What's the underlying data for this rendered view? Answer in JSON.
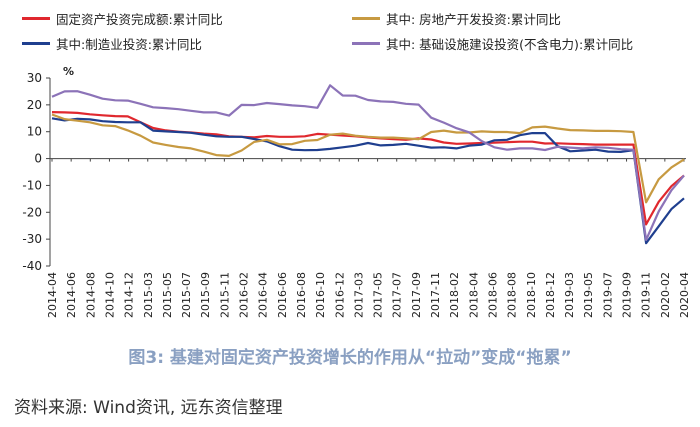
{
  "chart_data": {
    "type": "line",
    "ylabel": "%",
    "ylim": [
      -40,
      30
    ],
    "yticks": [
      30,
      20,
      10,
      0,
      -10,
      -20,
      -30,
      -40
    ],
    "grid": false,
    "legend_position": "top",
    "x_tick_labels": [
      "2014-04",
      "2014-06",
      "2014-08",
      "2014-10",
      "2014-12",
      "2015-03",
      "2015-05",
      "2015-07",
      "2015-09",
      "2015-11",
      "2016-02",
      "2016-04",
      "2016-06",
      "2016-08",
      "2016-10",
      "2016-12",
      "2017-03",
      "2017-05",
      "2017-07",
      "2017-09",
      "2017-11",
      "2018-02",
      "2018-04",
      "2018-06",
      "2018-08",
      "2018-10",
      "2018-12",
      "2019-03",
      "2019-05",
      "2019-07",
      "2019-09",
      "2019-11",
      "2020-02",
      "2020-04"
    ],
    "series": [
      {
        "name": "固定资产投资完成额:累计同比",
        "color": "#e0282e",
        "values": [
          17.3,
          17.2,
          17.0,
          16.5,
          16.1,
          15.8,
          15.7,
          13.5,
          11.4,
          10.5,
          10.0,
          9.7,
          9.3,
          9.0,
          8.3,
          8.1,
          7.9,
          8.4,
          8.1,
          8.1,
          8.3,
          9.2,
          8.9,
          8.6,
          8.3,
          7.9,
          7.5,
          7.2,
          7.0,
          7.5,
          7.1,
          6.0,
          5.5,
          5.6,
          5.8,
          5.9,
          6.1,
          6.3,
          6.3,
          5.6,
          5.7,
          5.5,
          5.4,
          5.2,
          5.2,
          5.2,
          5.2,
          -24.5,
          -16.1,
          -10.3,
          -6.3
        ]
      },
      {
        "name": "其中:制造业投资:累计同比",
        "color": "#1f3f8f",
        "values": [
          15.0,
          14.2,
          14.8,
          14.6,
          13.9,
          13.6,
          13.5,
          13.5,
          10.4,
          10.1,
          9.9,
          9.6,
          8.9,
          8.3,
          8.1,
          8.1,
          7.3,
          6.4,
          4.6,
          3.3,
          3.1,
          3.2,
          3.6,
          4.2,
          4.8,
          5.8,
          4.9,
          5.1,
          5.5,
          4.8,
          4.1,
          4.2,
          3.8,
          4.8,
          5.2,
          6.8,
          7.0,
          8.7,
          9.5,
          9.5,
          4.6,
          2.7,
          3.0,
          3.3,
          2.6,
          2.5,
          3.1,
          -31.5,
          -25.2,
          -18.8,
          -14.8
        ]
      },
      {
        "name": "其中:房地产开发投资:累计同比",
        "color": "#c79a41",
        "values": [
          16.4,
          14.7,
          14.1,
          13.5,
          12.4,
          12.1,
          10.5,
          8.5,
          6.0,
          5.1,
          4.3,
          3.8,
          2.6,
          1.3,
          1.0,
          3.0,
          6.2,
          7.0,
          5.3,
          5.4,
          6.6,
          6.9,
          8.9,
          9.3,
          8.5,
          8.1,
          7.8,
          7.8,
          7.5,
          7.2,
          9.9,
          10.4,
          9.7,
          9.7,
          10.1,
          9.9,
          9.9,
          9.5,
          11.6,
          11.9,
          11.2,
          10.6,
          10.5,
          10.3,
          10.3,
          10.2,
          9.9,
          -16.3,
          -7.7,
          -3.3,
          -0.3
        ]
      },
      {
        "name": "其中:基础设施建设投资(不含电力):累计同比",
        "color": "#8c73b8",
        "values": [
          23.0,
          25.0,
          25.1,
          23.8,
          22.3,
          21.7,
          21.6,
          20.4,
          19.1,
          18.8,
          18.4,
          17.8,
          17.2,
          17.2,
          16.0,
          20.0,
          19.9,
          20.7,
          20.3,
          19.8,
          19.5,
          18.9,
          27.3,
          23.5,
          23.4,
          21.8,
          21.3,
          21.1,
          20.4,
          20.1,
          15.2,
          13.4,
          11.3,
          9.8,
          6.5,
          4.2,
          3.3,
          3.8,
          3.8,
          3.2,
          4.4,
          4.1,
          3.8,
          4.2,
          4.0,
          3.5,
          3.3,
          -30.3,
          -19.7,
          -11.8,
          -6.3
        ]
      }
    ]
  },
  "legend": [
    {
      "label": "固定资产投资完成额:累计同比",
      "color": "#e0282e"
    },
    {
      "label": "其中: 房地产开发投资:累计同比",
      "color": "#c79a41"
    },
    {
      "label": "其中:制造业投资:累计同比",
      "color": "#1f3f8f"
    },
    {
      "label": "其中: 基础设施建设投资(不含电力):累计同比",
      "color": "#8c73b8"
    }
  ],
  "unit_label": "%",
  "caption": "图3: 基建对固定资产投资增长的作用从“拉动”变成“拖累”",
  "source": "资料来源: Wind资讯, 远东资信整理"
}
